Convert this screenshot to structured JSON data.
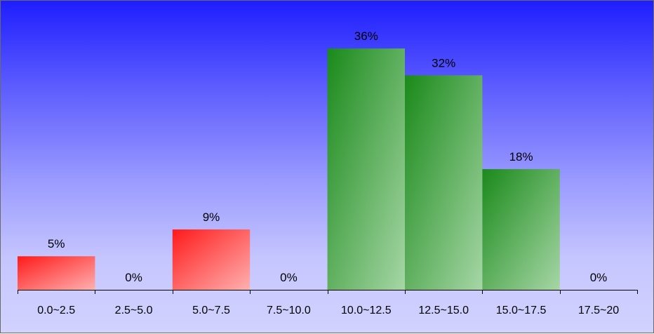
{
  "chart_data": {
    "type": "bar",
    "categories": [
      "0.0~2.5",
      "2.5~5.0",
      "5.0~7.5",
      "7.5~10.0",
      "10.0~12.5",
      "12.5~15.0",
      "15.0~17.5",
      "17.5~20"
    ],
    "values": [
      5,
      0,
      9,
      0,
      36,
      32,
      18,
      0
    ],
    "value_labels": [
      "5%",
      "0%",
      "9%",
      "0%",
      "36%",
      "32%",
      "18%",
      "0%"
    ],
    "bar_colors": [
      "red",
      "red",
      "red",
      "red",
      "green",
      "green",
      "green",
      "green"
    ],
    "ylim": [
      0,
      40
    ],
    "grid": false,
    "legend": "none",
    "colors": {
      "red_dark": "#ff1a1a",
      "red_light": "#ffb0b0",
      "green_dark": "#1a8a1a",
      "green_light": "#a6d6a6",
      "axis": "#000000"
    }
  }
}
